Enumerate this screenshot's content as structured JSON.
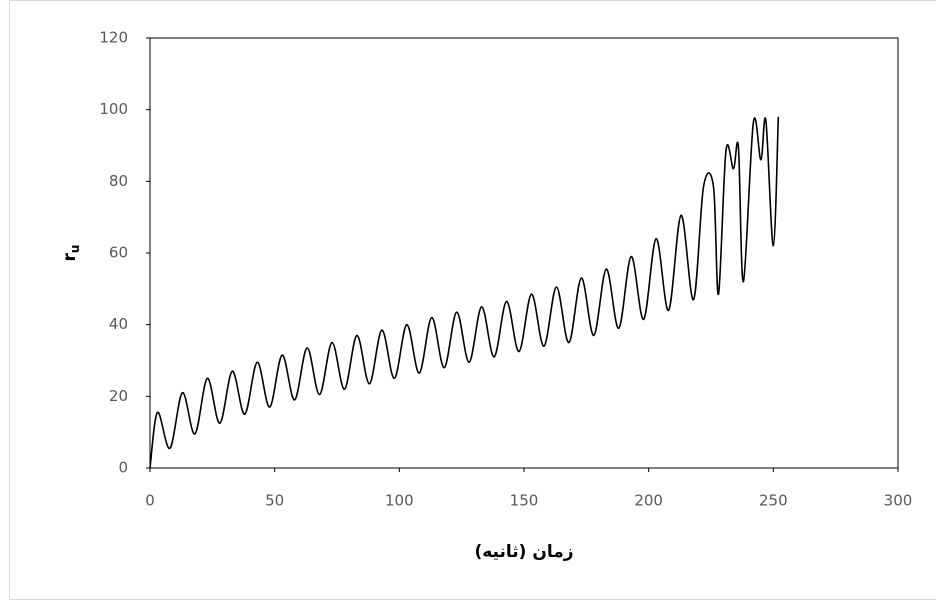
{
  "chart_data": {
    "type": "line",
    "x_label": "زمان (ثانیه)",
    "y_label": "r",
    "y_label_subscript": "u",
    "x": [
      0,
      3,
      8,
      13,
      18,
      23,
      28,
      33,
      38,
      43,
      48,
      53,
      58,
      63,
      68,
      73,
      78,
      83,
      88,
      93,
      98,
      103,
      108,
      113,
      118,
      123,
      128,
      133,
      138,
      143,
      148,
      153,
      158,
      163,
      168,
      173,
      178,
      183,
      188,
      193,
      198,
      203,
      208,
      213,
      218,
      222,
      226,
      228,
      231,
      234,
      236,
      238,
      242,
      245,
      247,
      250,
      252
    ],
    "series": [
      {
        "name": "ru",
        "color": "#000000",
        "values": [
          0,
          15.5,
          5.5,
          21,
          9.5,
          25,
          12.5,
          27,
          15,
          29.5,
          17,
          31.5,
          19,
          33.5,
          20.5,
          35,
          22,
          37,
          23.5,
          38.5,
          25,
          40,
          26.5,
          42,
          28,
          43.5,
          29.5,
          45,
          31,
          46.5,
          32.5,
          48.5,
          34,
          50.5,
          35,
          53,
          37,
          55.5,
          39,
          59,
          41.5,
          64,
          44,
          70.5,
          47,
          78.5,
          78.5,
          48.5,
          88.5,
          83.5,
          89.5,
          52,
          96.5,
          86,
          97,
          62,
          98
        ]
      }
    ],
    "xlim": [
      0,
      300
    ],
    "xticks": [
      0,
      50,
      100,
      150,
      200,
      250,
      300
    ],
    "ylim": [
      0,
      120
    ],
    "yticks": [
      0,
      20,
      40,
      60,
      80,
      100,
      120
    ],
    "grid": false
  }
}
